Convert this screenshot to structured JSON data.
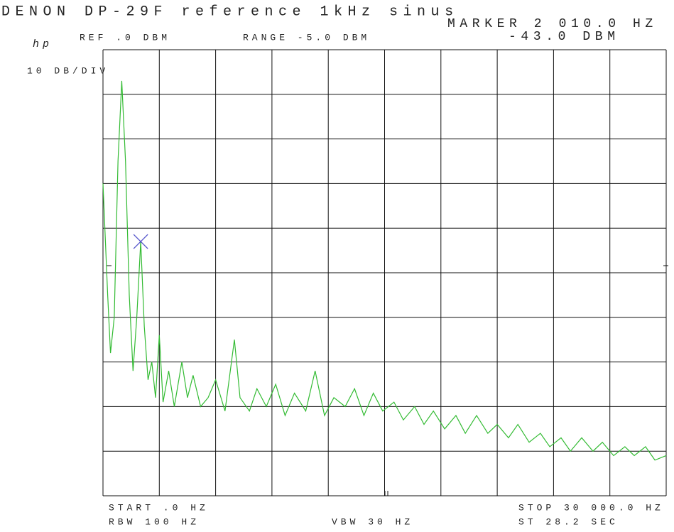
{
  "chart_data": {
    "type": "line",
    "title": "DENON DP-29F reference 1kHz sinus",
    "brand": "hp",
    "reference": "REF .0 DBM",
    "range": "RANGE -5.0 DBM",
    "scale": "10 DB/DIV",
    "marker": {
      "label": "MARKER 2 010.0 HZ",
      "level": "-43.0 DBM",
      "x": 2010,
      "y": -43,
      "color": "#5555cc"
    },
    "start": "START .0 HZ",
    "rbw": "RBW 100 HZ",
    "vbw": "VBW 30 HZ",
    "stop": "STOP 30 000.0 HZ",
    "sweep": "ST 28.2 SEC",
    "xlim": [
      0,
      30000
    ],
    "ylim": [
      -100,
      0
    ],
    "xticks": [
      0,
      3000,
      6000,
      9000,
      12000,
      15000,
      18000,
      21000,
      24000,
      27000,
      30000
    ],
    "yticks": [
      -100,
      -90,
      -80,
      -70,
      -60,
      -50,
      -40,
      -30,
      -20,
      -10,
      0
    ],
    "grid": true,
    "series": [
      {
        "color": "#33bb33",
        "x": [
          0,
          250,
          400,
          600,
          800,
          1000,
          1200,
          1400,
          1600,
          1800,
          2010,
          2200,
          2400,
          2600,
          2800,
          3000,
          3200,
          3500,
          3800,
          4200,
          4500,
          4800,
          5200,
          5600,
          6000,
          6500,
          7000,
          7300,
          7800,
          8200,
          8700,
          9200,
          9700,
          10200,
          10800,
          11300,
          11800,
          12300,
          12900,
          13400,
          13900,
          14400,
          14900,
          15500,
          16000,
          16600,
          17100,
          17600,
          18200,
          18800,
          19300,
          19900,
          20500,
          21000,
          21600,
          22100,
          22700,
          23300,
          23800,
          24400,
          24900,
          25500,
          26100,
          26600,
          27200,
          27800,
          28300,
          28900,
          29400,
          30000
        ],
        "values": [
          -30,
          -55,
          -68,
          -60,
          -25,
          -7,
          -25,
          -55,
          -72,
          -60,
          -43,
          -62,
          -74,
          -70,
          -78,
          -64,
          -79,
          -72,
          -80,
          -70,
          -78,
          -73,
          -80,
          -78,
          -74,
          -81,
          -65,
          -78,
          -81,
          -76,
          -80,
          -75,
          -82,
          -77,
          -81,
          -72,
          -82,
          -78,
          -80,
          -76,
          -82,
          -77,
          -81,
          -79,
          -83,
          -80,
          -84,
          -81,
          -85,
          -82,
          -86,
          -82,
          -86,
          -84,
          -87,
          -84,
          -88,
          -86,
          -89,
          -87,
          -90,
          -87,
          -90,
          -88,
          -91,
          -89,
          -91,
          -89,
          -92,
          -91
        ]
      }
    ]
  }
}
